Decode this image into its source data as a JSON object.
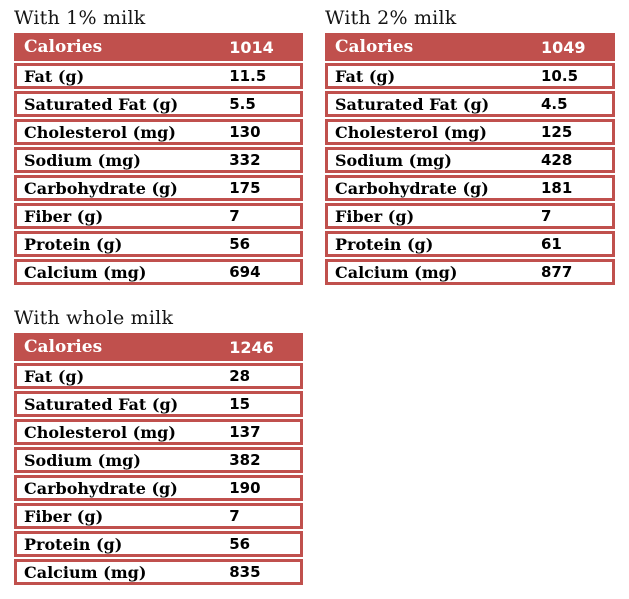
{
  "colors": {
    "accent": "#C0504D",
    "header_text": "#FFFFFF",
    "row_background": "#FFFFFF",
    "body_text": "#000000",
    "page_background": "#FFFFFF"
  },
  "tables": [
    {
      "title": "With 1% milk",
      "header": {
        "label": "Calories",
        "value": "1014"
      },
      "rows": [
        {
          "label": "Fat (g)",
          "value": "11.5"
        },
        {
          "label": "Saturated Fat (g)",
          "value": "5.5"
        },
        {
          "label": "Cholesterol (mg)",
          "value": "130"
        },
        {
          "label": "Sodium (mg)",
          "value": "332"
        },
        {
          "label": "Carbohydrate (g)",
          "value": "175"
        },
        {
          "label": "Fiber (g)",
          "value": "7"
        },
        {
          "label": "Protein (g)",
          "value": "56"
        },
        {
          "label": "Calcium (mg)",
          "value": "694"
        }
      ]
    },
    {
      "title": "With 2% milk",
      "header": {
        "label": "Calories",
        "value": "1049"
      },
      "rows": [
        {
          "label": "Fat (g)",
          "value": "10.5"
        },
        {
          "label": "Saturated Fat (g)",
          "value": "4.5"
        },
        {
          "label": "Cholesterol (mg)",
          "value": "125"
        },
        {
          "label": "Sodium (mg)",
          "value": "428"
        },
        {
          "label": "Carbohydrate (g)",
          "value": "181"
        },
        {
          "label": "Fiber (g)",
          "value": "7"
        },
        {
          "label": "Protein (g)",
          "value": "61"
        },
        {
          "label": "Calcium (mg)",
          "value": "877"
        }
      ]
    },
    {
      "title": "With whole milk",
      "header": {
        "label": "Calories",
        "value": "1246"
      },
      "rows": [
        {
          "label": "Fat (g)",
          "value": "28"
        },
        {
          "label": "Saturated Fat (g)",
          "value": "15"
        },
        {
          "label": "Cholesterol (mg)",
          "value": "137"
        },
        {
          "label": "Sodium (mg)",
          "value": "382"
        },
        {
          "label": "Carbohydrate (g)",
          "value": "190"
        },
        {
          "label": "Fiber (g)",
          "value": "7"
        },
        {
          "label": "Protein (g)",
          "value": "56"
        },
        {
          "label": "Calcium (mg)",
          "value": "835"
        }
      ]
    }
  ],
  "chart_data": {
    "type": "table",
    "categories": [
      "Calories",
      "Fat (g)",
      "Saturated Fat (g)",
      "Cholesterol (mg)",
      "Sodium (mg)",
      "Carbohydrate (g)",
      "Fiber (g)",
      "Protein (g)",
      "Calcium (mg)"
    ],
    "series": [
      {
        "name": "With 1% milk",
        "values": [
          1014,
          11.5,
          5.5,
          130,
          332,
          175,
          7,
          56,
          694
        ]
      },
      {
        "name": "With 2% milk",
        "values": [
          1049,
          10.5,
          4.5,
          125,
          428,
          181,
          7,
          61,
          877
        ]
      },
      {
        "name": "With whole milk",
        "values": [
          1246,
          28,
          15,
          137,
          382,
          190,
          7,
          56,
          835
        ]
      }
    ]
  }
}
